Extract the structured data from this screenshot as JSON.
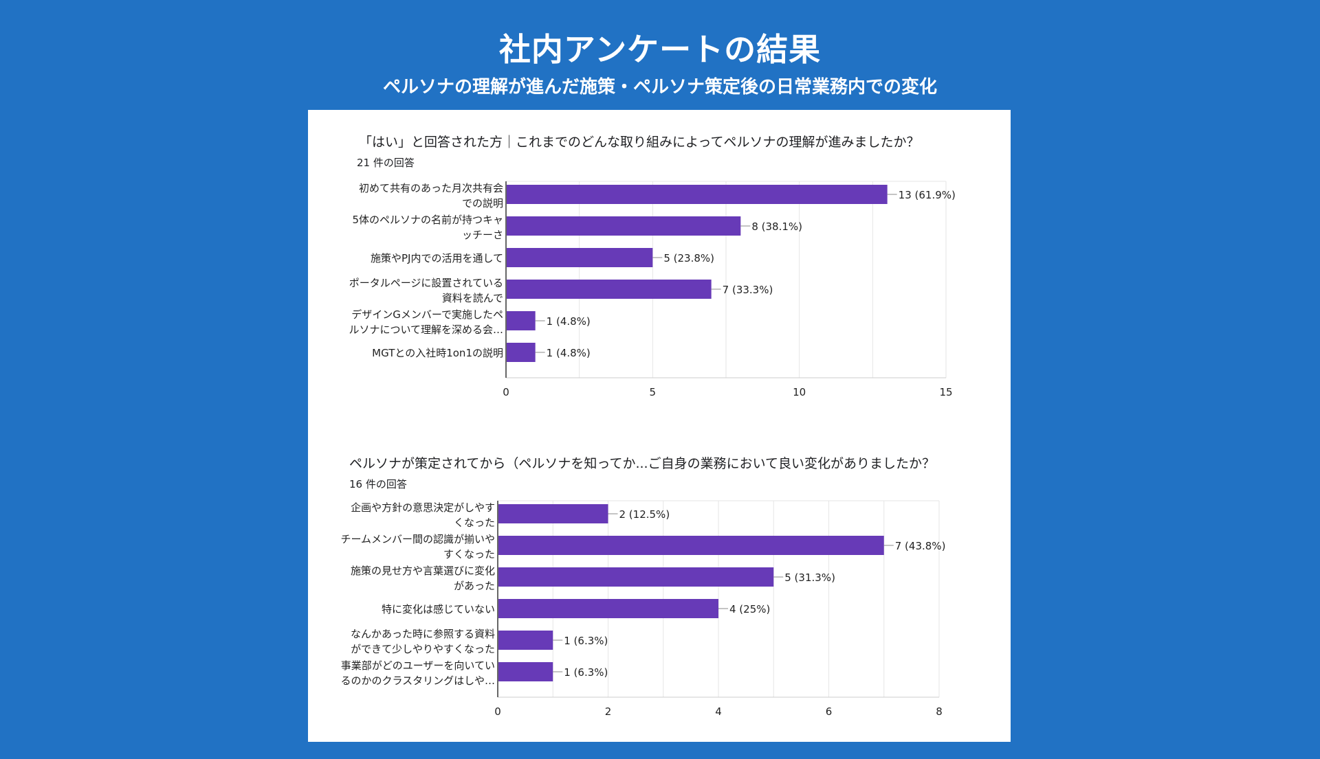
{
  "slide": {
    "title": "社内アンケートの結果",
    "subtitle": "ペルソナの理解が進んだ施策・ペルソナ策定後の日常業務内での変化"
  },
  "colors": {
    "background": "#2172c4",
    "bar": "#673ab7",
    "grid": "#e6e6e6"
  },
  "chart_data": [
    {
      "type": "bar",
      "orientation": "horizontal",
      "title": "「はい」と回答された方｜これまでのどんな取り組みによってペルソナの理解が進みましたか？",
      "response_count": "21 件の回答",
      "categories": [
        [
          "初めて共有のあった月次共有会",
          "での説明"
        ],
        [
          "5体のペルソナの名前が持つキャ",
          "ッチーさ"
        ],
        [
          "施策やPJ内での活用を通して"
        ],
        [
          "ポータルページに設置されている",
          "資料を読んで"
        ],
        [
          "デザインGメンバーで実施したペ",
          "ルソナについて理解を深める会…"
        ],
        [
          "MGTとの入社時1on1の説明"
        ]
      ],
      "values": [
        13,
        8,
        5,
        7,
        1,
        1
      ],
      "data_labels": [
        "13 (61.9%)",
        "8 (38.1%)",
        "5 (23.8%)",
        "7 (33.3%)",
        "1 (4.8%)",
        "1 (4.8%)"
      ],
      "xlim": [
        0,
        15
      ],
      "xticks": [
        0,
        5,
        10,
        15
      ],
      "grid": true
    },
    {
      "type": "bar",
      "orientation": "horizontal",
      "title": "ペルソナが策定されてから（ペルソナを知ってか...ご自身の業務において良い変化がありましたか？",
      "response_count": "16 件の回答",
      "categories": [
        [
          "企画や方針の意思決定がしやす",
          "くなった"
        ],
        [
          "チームメンバー間の認識が揃いや",
          "すくなった"
        ],
        [
          "施策の見せ方や言葉選びに変化",
          "があった"
        ],
        [
          "特に変化は感じていない"
        ],
        [
          "なんかあった時に参照する資料",
          "ができて少しやりやすくなった"
        ],
        [
          "事業部がどのユーザーを向いてい",
          "るのかのクラスタリングはしや…"
        ]
      ],
      "values": [
        2,
        7,
        5,
        4,
        1,
        1
      ],
      "data_labels": [
        "2 (12.5%)",
        "7 (43.8%)",
        "5 (31.3%)",
        "4 (25%)",
        "1 (6.3%)",
        "1 (6.3%)"
      ],
      "xlim": [
        0,
        8
      ],
      "xticks": [
        0,
        2,
        4,
        6,
        8
      ],
      "grid": true
    }
  ]
}
